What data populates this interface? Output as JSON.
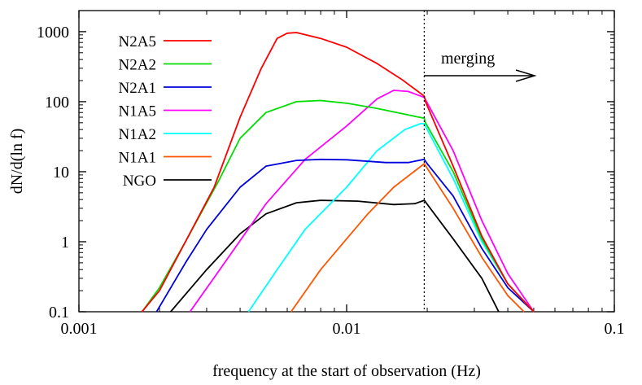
{
  "chart_data": {
    "type": "line",
    "xlabel": "frequency at the start of observation (Hz)",
    "ylabel": "dN/d(ln f)",
    "xscale": "log",
    "yscale": "log",
    "xlim": [
      0.001,
      0.1
    ],
    "ylim": [
      0.1,
      2000
    ],
    "x_ticks": [
      "0.001",
      "0.01",
      "0.1"
    ],
    "y_ticks": [
      "0.1",
      "1",
      "10",
      "100",
      "1000"
    ],
    "grid": false,
    "legend_position": "top-left",
    "annotation": {
      "text": "merging",
      "vline_x": 0.0195
    },
    "series": [
      {
        "name": "N2A5",
        "color": "#ff0000",
        "points": [
          [
            0.00172,
            0.1
          ],
          [
            0.002,
            0.2
          ],
          [
            0.0025,
            1.0
          ],
          [
            0.0032,
            6.0
          ],
          [
            0.004,
            60
          ],
          [
            0.0048,
            300
          ],
          [
            0.0055,
            800
          ],
          [
            0.006,
            950
          ],
          [
            0.0065,
            970
          ],
          [
            0.008,
            800
          ],
          [
            0.01,
            600
          ],
          [
            0.013,
            350
          ],
          [
            0.016,
            210
          ],
          [
            0.0195,
            120
          ],
          [
            0.0197,
            100
          ],
          [
            0.025,
            12
          ],
          [
            0.032,
            1.2
          ],
          [
            0.04,
            0.25
          ],
          [
            0.05,
            0.1
          ]
        ]
      },
      {
        "name": "N2A2",
        "color": "#00dd00",
        "points": [
          [
            0.00172,
            0.1
          ],
          [
            0.002,
            0.22
          ],
          [
            0.0025,
            1.0
          ],
          [
            0.0033,
            7.0
          ],
          [
            0.004,
            30
          ],
          [
            0.005,
            70
          ],
          [
            0.0065,
            100
          ],
          [
            0.008,
            104
          ],
          [
            0.01,
            95
          ],
          [
            0.013,
            80
          ],
          [
            0.0195,
            58
          ],
          [
            0.0197,
            50
          ],
          [
            0.025,
            10
          ],
          [
            0.032,
            1.1
          ],
          [
            0.04,
            0.25
          ],
          [
            0.05,
            0.1
          ]
        ]
      },
      {
        "name": "N2A1",
        "color": "#0000dd",
        "points": [
          [
            0.00195,
            0.1
          ],
          [
            0.0025,
            0.5
          ],
          [
            0.003,
            1.5
          ],
          [
            0.004,
            6
          ],
          [
            0.005,
            12
          ],
          [
            0.0065,
            14.5
          ],
          [
            0.008,
            15
          ],
          [
            0.01,
            14.8
          ],
          [
            0.014,
            13.5
          ],
          [
            0.017,
            13.5
          ],
          [
            0.0195,
            15
          ],
          [
            0.02,
            13
          ],
          [
            0.025,
            4.5
          ],
          [
            0.032,
            0.8
          ],
          [
            0.04,
            0.22
          ],
          [
            0.05,
            0.1
          ]
        ]
      },
      {
        "name": "N1A5",
        "color": "#ff00ff",
        "points": [
          [
            0.0026,
            0.1
          ],
          [
            0.0035,
            0.5
          ],
          [
            0.005,
            3.5
          ],
          [
            0.007,
            15
          ],
          [
            0.01,
            45
          ],
          [
            0.013,
            110
          ],
          [
            0.015,
            145
          ],
          [
            0.017,
            140
          ],
          [
            0.0195,
            115
          ],
          [
            0.025,
            20
          ],
          [
            0.032,
            2.0
          ],
          [
            0.04,
            0.35
          ],
          [
            0.05,
            0.1
          ]
        ]
      },
      {
        "name": "N1A2",
        "color": "#00ffff",
        "points": [
          [
            0.0043,
            0.1
          ],
          [
            0.0055,
            0.4
          ],
          [
            0.007,
            1.5
          ],
          [
            0.01,
            6
          ],
          [
            0.013,
            20
          ],
          [
            0.0165,
            40
          ],
          [
            0.019,
            49
          ],
          [
            0.0195,
            48
          ],
          [
            0.025,
            8
          ],
          [
            0.032,
            1.0
          ],
          [
            0.04,
            0.25
          ],
          [
            0.05,
            0.1
          ]
        ]
      },
      {
        "name": "N1A1",
        "color": "#ff5500",
        "points": [
          [
            0.0062,
            0.1
          ],
          [
            0.008,
            0.4
          ],
          [
            0.01,
            1.1
          ],
          [
            0.012,
            2.5
          ],
          [
            0.015,
            6
          ],
          [
            0.0195,
            13
          ],
          [
            0.025,
            3
          ],
          [
            0.032,
            0.6
          ],
          [
            0.04,
            0.17
          ],
          [
            0.046,
            0.1
          ]
        ]
      },
      {
        "name": "NGO",
        "color": "#000000",
        "points": [
          [
            0.0022,
            0.1
          ],
          [
            0.003,
            0.4
          ],
          [
            0.004,
            1.3
          ],
          [
            0.005,
            2.5
          ],
          [
            0.0065,
            3.6
          ],
          [
            0.008,
            3.9
          ],
          [
            0.011,
            3.8
          ],
          [
            0.015,
            3.4
          ],
          [
            0.018,
            3.5
          ],
          [
            0.0195,
            3.9
          ],
          [
            0.025,
            1.1
          ],
          [
            0.032,
            0.3
          ],
          [
            0.037,
            0.1
          ]
        ]
      }
    ]
  }
}
